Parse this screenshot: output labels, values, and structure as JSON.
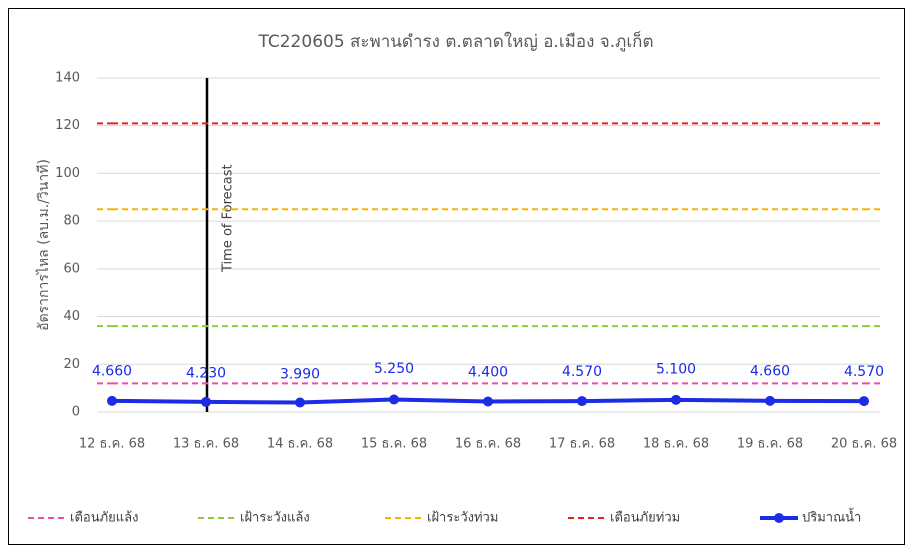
{
  "chart_data": {
    "type": "line",
    "title": "TC220605 สะพานดำรง ต.ตลาดใหญ่ อ.เมือง จ.ภูเก็ต",
    "y_label": "อัตราการไหล (ลบ.ม./วินาที)",
    "categories": [
      "12 ธ.ค. 68",
      "13 ธ.ค. 68",
      "14 ธ.ค. 68",
      "15 ธ.ค. 68",
      "16 ธ.ค. 68",
      "17 ธ.ค. 68",
      "18 ธ.ค. 68",
      "19 ธ.ค. 68",
      "20 ธ.ค. 68"
    ],
    "series": [
      {
        "name": "เตือนภัยแล้ง",
        "color": "#ee4fa6",
        "dash": true,
        "values": [
          12,
          12,
          12,
          12,
          12,
          12,
          12,
          12,
          12
        ]
      },
      {
        "name": "เฝ้าระวังแล้ง",
        "color": "#8fcb3c",
        "dash": true,
        "values": [
          36,
          36,
          36,
          36,
          36,
          36,
          36,
          36,
          36
        ]
      },
      {
        "name": "เฝ้าระวังท่วม",
        "color": "#f7b500",
        "dash": true,
        "values": [
          85,
          85,
          85,
          85,
          85,
          85,
          85,
          85,
          85
        ]
      },
      {
        "name": "เตือนภัยท่วม",
        "color": "#e8201c",
        "dash": true,
        "values": [
          121,
          121,
          121,
          121,
          121,
          121,
          121,
          121,
          121
        ]
      },
      {
        "name": "ปริมาณน้ำ",
        "color": "#1b2be6",
        "marker": true,
        "values": [
          4.66,
          4.23,
          3.99,
          5.25,
          4.4,
          4.57,
          5.1,
          4.66,
          4.57
        ],
        "value_labels": [
          "4.660",
          "4.230",
          "3.990",
          "5.250",
          "4.400",
          "4.570",
          "5.100",
          "4.660",
          "4.570"
        ]
      }
    ],
    "annotation": {
      "text": "Time of Forecast",
      "category": "13 ธ.ค. 68"
    },
    "ylim": [
      0,
      140
    ],
    "yticks": [
      0,
      20,
      40,
      60,
      80,
      100,
      120,
      140
    ],
    "grid": true,
    "legend": "bottom"
  }
}
